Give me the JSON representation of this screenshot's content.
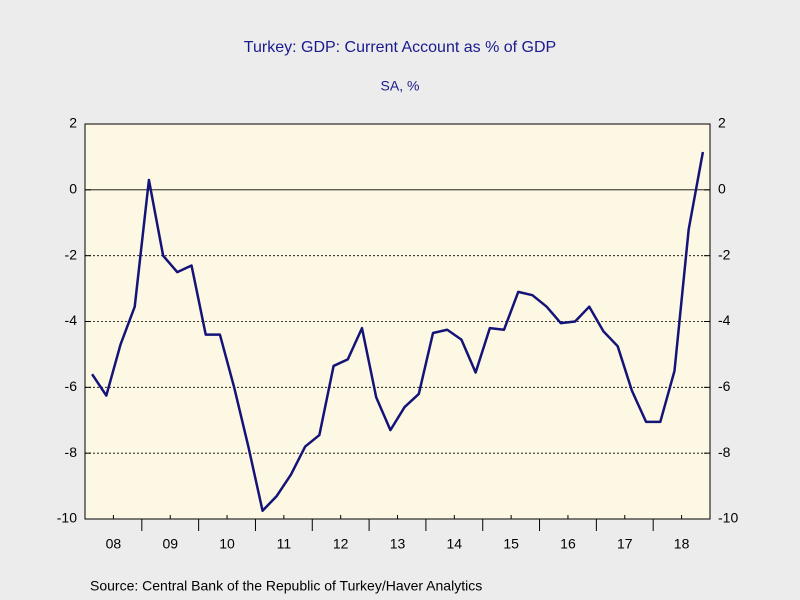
{
  "chart_data": {
    "type": "line",
    "title": "Turkey: GDP: Current Account as % of GDP",
    "subtitle": "SA, %",
    "source": "Source:  Central Bank of the Republic of Turkey/Haver Analytics",
    "x": [
      2008.125,
      2008.375,
      2008.625,
      2008.875,
      2009.125,
      2009.375,
      2009.625,
      2009.875,
      2010.125,
      2010.375,
      2010.625,
      2010.875,
      2011.125,
      2011.375,
      2011.625,
      2011.875,
      2012.125,
      2012.375,
      2012.625,
      2012.875,
      2013.125,
      2013.375,
      2013.625,
      2013.875,
      2014.125,
      2014.375,
      2014.625,
      2014.875,
      2015.125,
      2015.375,
      2015.625,
      2015.875,
      2016.125,
      2016.375,
      2016.625,
      2016.875,
      2017.125,
      2017.375,
      2017.625,
      2017.875,
      2018.125,
      2018.375,
      2018.625,
      2018.875
    ],
    "series": [
      {
        "name": "Current Account as % of GDP",
        "color": "#141478",
        "values": [
          -5.6,
          -6.25,
          -4.7,
          -3.55,
          0.3,
          -2.0,
          -2.5,
          -2.3,
          -4.4,
          -4.4,
          -6.0,
          -7.8,
          -9.75,
          -9.3,
          -8.65,
          -7.8,
          -7.45,
          -5.35,
          -5.15,
          -4.2,
          -6.3,
          -7.3,
          -6.6,
          -6.2,
          -4.35,
          -4.25,
          -4.55,
          -5.55,
          -4.2,
          -4.25,
          -3.1,
          -3.2,
          -3.55,
          -4.05,
          -4.0,
          -3.55,
          -4.3,
          -4.75,
          -6.1,
          -7.05,
          -7.05,
          -5.5,
          -1.2,
          1.15
        ]
      }
    ],
    "xlim": [
      2008,
      2019
    ],
    "xticks": [
      {
        "value": 2008.5,
        "label": "08"
      },
      {
        "value": 2009.5,
        "label": "09"
      },
      {
        "value": 2010.5,
        "label": "10"
      },
      {
        "value": 2011.5,
        "label": "11"
      },
      {
        "value": 2012.5,
        "label": "12"
      },
      {
        "value": 2013.5,
        "label": "13"
      },
      {
        "value": 2014.5,
        "label": "14"
      },
      {
        "value": 2015.5,
        "label": "15"
      },
      {
        "value": 2016.5,
        "label": "16"
      },
      {
        "value": 2017.5,
        "label": "17"
      },
      {
        "value": 2018.5,
        "label": "18"
      }
    ],
    "ylim": [
      -10,
      2
    ],
    "yticks": [
      -10,
      -8,
      -6,
      -4,
      -2,
      0,
      2
    ],
    "y2lim": [
      -10,
      2
    ],
    "y2ticks": [
      -10,
      -8,
      -6,
      -4,
      -2,
      0,
      2
    ],
    "grid": true
  }
}
